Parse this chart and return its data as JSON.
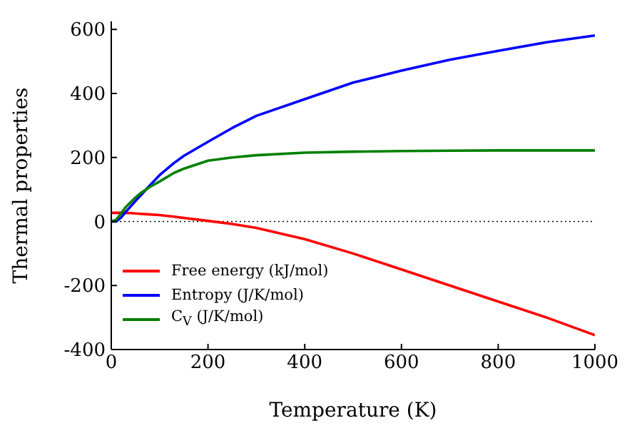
{
  "chart_data": {
    "type": "line",
    "xlabel": "Temperature (K)",
    "ylabel": "Thermal properties",
    "x": [
      0,
      10,
      20,
      30,
      40,
      50,
      60,
      80,
      100,
      130,
      150,
      200,
      250,
      300,
      400,
      500,
      600,
      700,
      800,
      900,
      1000
    ],
    "series": [
      {
        "name": "Free energy (kJ/mol)",
        "color": "#ff0000",
        "values": [
          27,
          27,
          27,
          27,
          26,
          25,
          24,
          22,
          20,
          15,
          11,
          2,
          -8,
          -20,
          -55,
          -100,
          -150,
          -200,
          -250,
          -300,
          -355
        ]
      },
      {
        "name": "Entropy (J/K/mol)",
        "color": "#0000ff",
        "values": [
          0,
          0,
          12,
          30,
          47,
          64,
          80,
          113,
          145,
          183,
          205,
          249,
          292,
          330,
          382,
          434,
          471,
          505,
          533,
          560,
          581
        ]
      },
      {
        "name": "C$_{V}$ (J/K/mol)",
        "color": "#008000",
        "values": [
          0,
          5,
          25,
          45,
          60,
          75,
          88,
          108,
          125,
          152,
          165,
          190,
          200,
          207,
          215,
          218,
          220,
          221,
          222,
          222,
          222
        ]
      }
    ],
    "xlim": [
      0,
      1000
    ],
    "xticks": [
      0,
      200,
      400,
      600,
      800,
      1000
    ],
    "ylim": [
      -400,
      625
    ],
    "yticks": [
      -400,
      -200,
      0,
      200,
      400,
      600
    ],
    "ref_lines": [
      {
        "axis": "y",
        "value": 0,
        "color": "#000000",
        "line_style": "dotted"
      }
    ],
    "legend": "bottom left",
    "grid": false,
    "marker": "none",
    "line_style": "solid"
  }
}
